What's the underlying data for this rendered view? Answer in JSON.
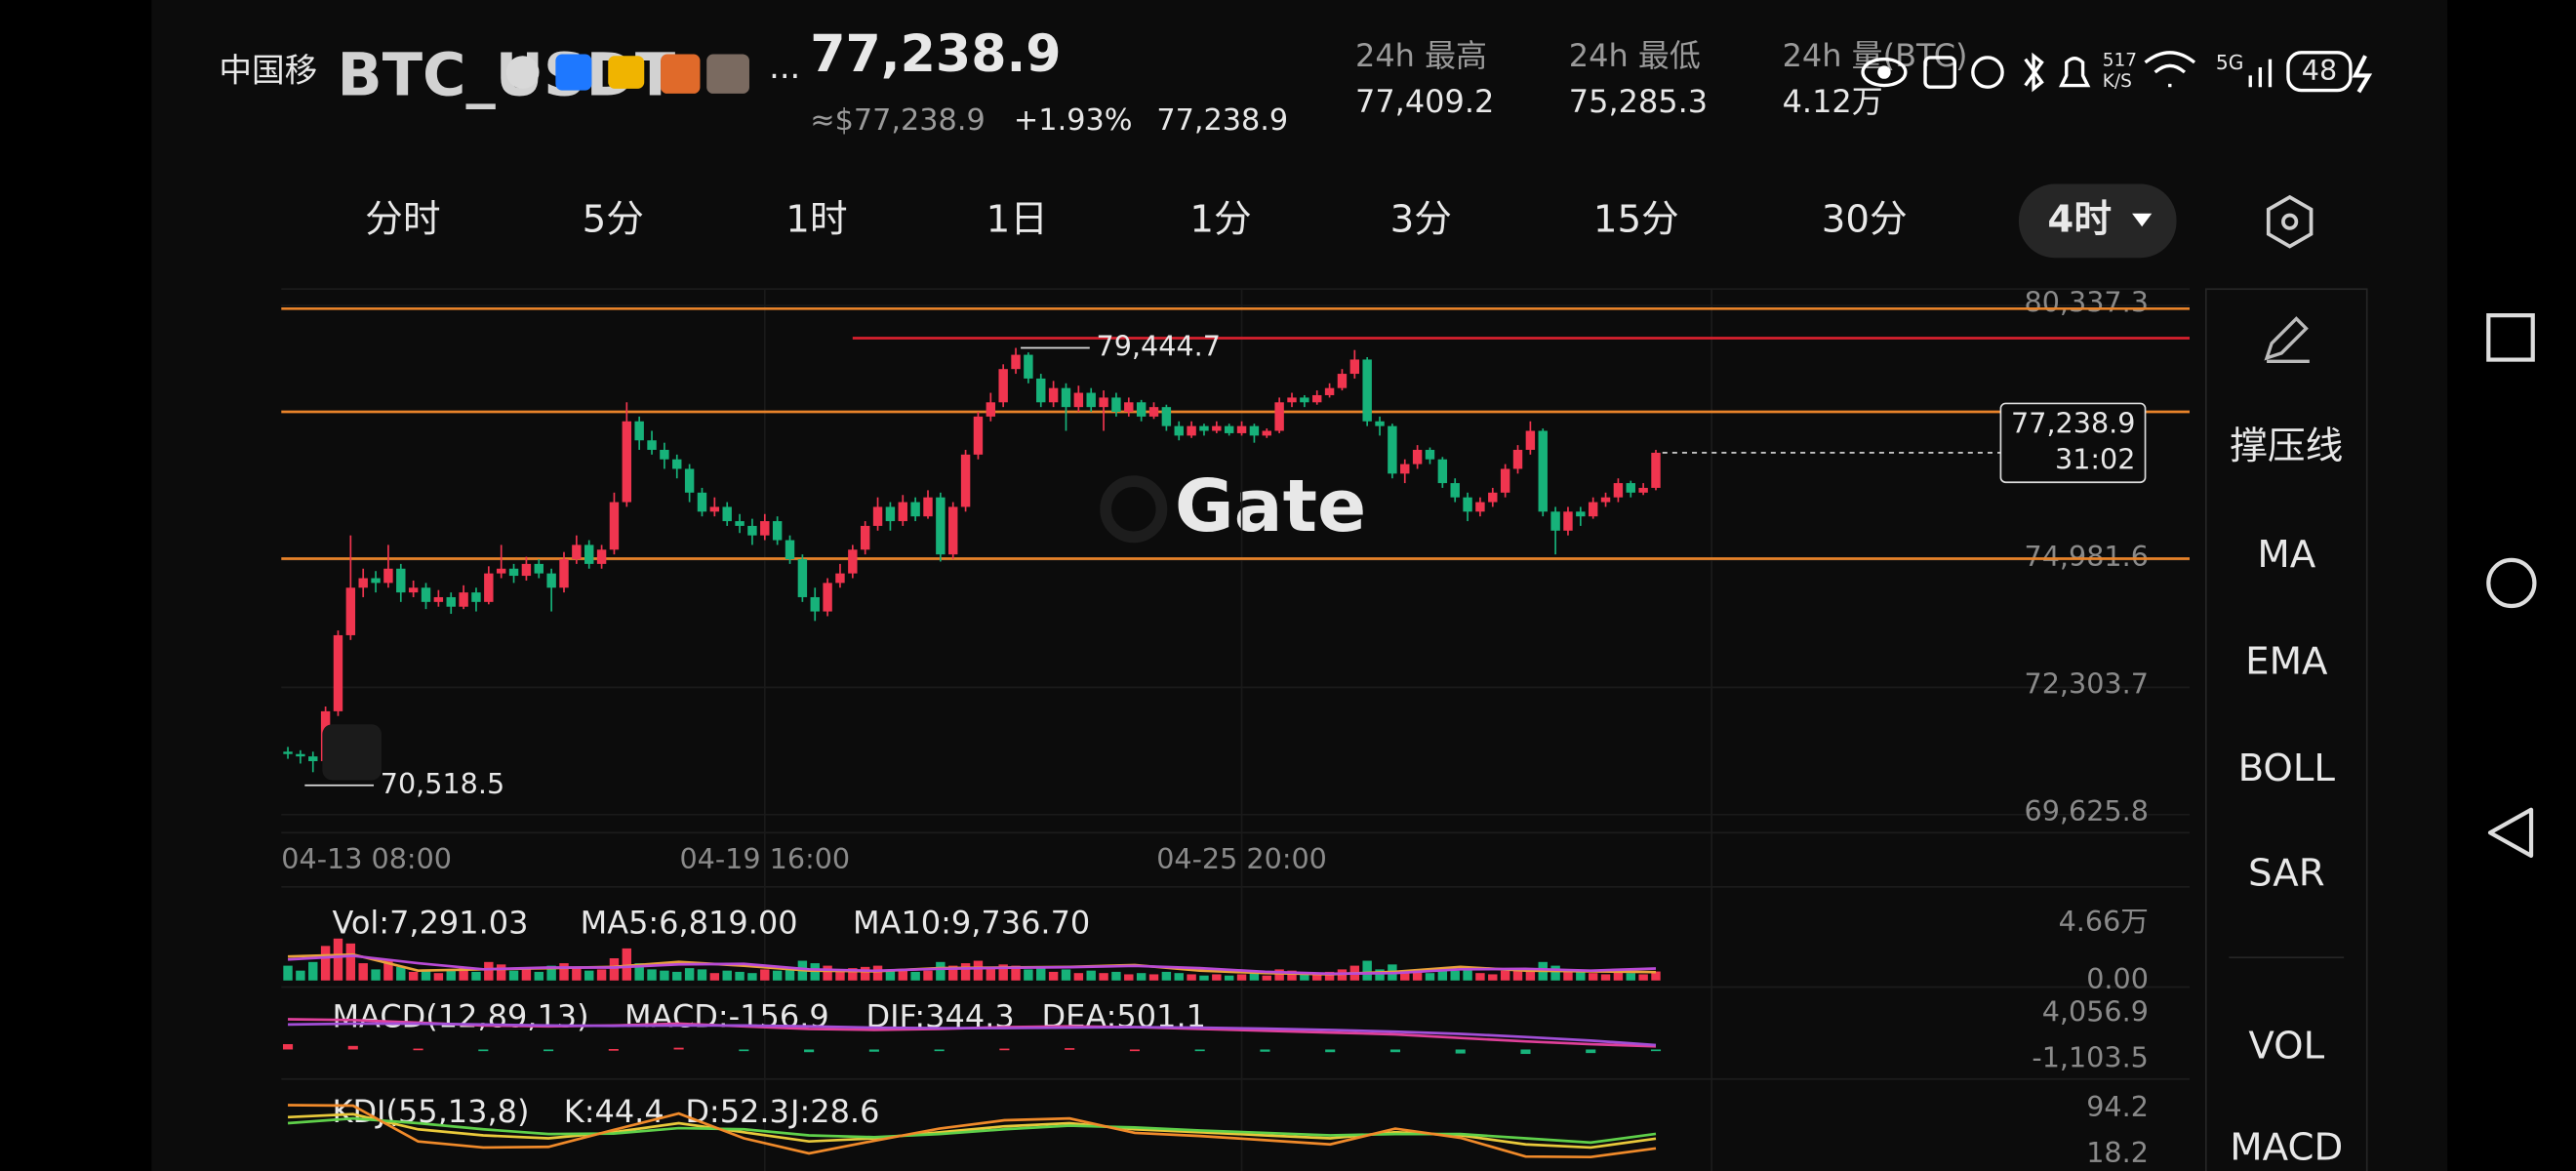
{
  "status_bar": {
    "carrier": "中国移",
    "speed_value": "517",
    "speed_unit": "K/S",
    "network": "5G",
    "battery": "48"
  },
  "header": {
    "symbol": "BTC_USDT",
    "more": "...",
    "price": "77,238.9",
    "approx": "≈$77,238.9",
    "change": "+1.93%",
    "mark_price": "77,238.9"
  },
  "stats": [
    {
      "label": "24h  最高",
      "value": "77,409.2"
    },
    {
      "label": "24h  最低",
      "value": "75,285.3"
    },
    {
      "label": "24h  量(BTC)",
      "value": "4.12万"
    }
  ],
  "tabs": {
    "items": [
      "分时",
      "5分",
      "1时",
      "1日",
      "1分",
      "3分",
      "15分",
      "30分",
      "4时"
    ],
    "active": 8
  },
  "toolbar": [
    "撑压线",
    "MA",
    "EMA",
    "BOLL",
    "SAR",
    "VOL",
    "MACD"
  ],
  "chart": {
    "type": "candlestick",
    "watermark": "Gate",
    "up_color": "#f0354f",
    "down_color": "#17b27a",
    "ylim": [
      69625.8,
      80337.3
    ],
    "yticks": [
      {
        "value": 80337.3,
        "label": "80,337.3"
      },
      {
        "value": 74981.6,
        "label": "74,981.6"
      },
      {
        "value": 72303.7,
        "label": "72,303.7"
      },
      {
        "value": 69625.8,
        "label": "69,625.8"
      }
    ],
    "xlabels": [
      {
        "index": 0,
        "label": "04-13 08:00"
      },
      {
        "index": 38,
        "label": "04-19 16:00"
      },
      {
        "index": 76,
        "label": "04-25 20:00"
      }
    ],
    "levels": [
      {
        "price": 80270,
        "color": "#e8832a"
      },
      {
        "price": 78100,
        "color": "#e8832a"
      },
      {
        "price": 75010,
        "color": "#e8832a"
      },
      {
        "price": 79650,
        "color": "#d8202e",
        "from_index": 45
      }
    ],
    "high": {
      "value": 79444.7,
      "label": "79,444.7"
    },
    "low": {
      "value": 70518.5,
      "label": "70,518.5"
    },
    "last": {
      "value": 77238.9,
      "label": "77,238.9",
      "countdown": "31:02"
    },
    "candles": [
      [
        70950,
        71050,
        70800,
        70900
      ],
      [
        70900,
        70980,
        70700,
        70850
      ],
      [
        70850,
        70950,
        70518.5,
        70750
      ],
      [
        70750,
        71900,
        70700,
        71800
      ],
      [
        71800,
        73500,
        71700,
        73400
      ],
      [
        73400,
        75500,
        73300,
        74400
      ],
      [
        74400,
        74800,
        74200,
        74600
      ],
      [
        74600,
        74750,
        74300,
        74500
      ],
      [
        74500,
        75300,
        74400,
        74800
      ],
      [
        74800,
        74900,
        74100,
        74300
      ],
      [
        74300,
        74550,
        74200,
        74400
      ],
      [
        74400,
        74500,
        73950,
        74100
      ],
      [
        74100,
        74350,
        74000,
        74200
      ],
      [
        74200,
        74300,
        73850,
        74000
      ],
      [
        74000,
        74450,
        73950,
        74300
      ],
      [
        74300,
        74400,
        73900,
        74100
      ],
      [
        74100,
        74850,
        74050,
        74700
      ],
      [
        74700,
        75300,
        74600,
        74800
      ],
      [
        74800,
        74900,
        74500,
        74650
      ],
      [
        74650,
        75050,
        74550,
        74900
      ],
      [
        74900,
        75000,
        74600,
        74700
      ],
      [
        74700,
        74800,
        73900,
        74400
      ],
      [
        74400,
        75150,
        74300,
        75000
      ],
      [
        75000,
        75500,
        74900,
        75300
      ],
      [
        75300,
        75400,
        74800,
        74900
      ],
      [
        74900,
        75300,
        74800,
        75200
      ],
      [
        75200,
        76400,
        75100,
        76200
      ],
      [
        76200,
        78300,
        76100,
        77900
      ],
      [
        77900,
        78000,
        77300,
        77500
      ],
      [
        77500,
        77700,
        77200,
        77300
      ],
      [
        77300,
        77450,
        76900,
        77100
      ],
      [
        77100,
        77200,
        76700,
        76900
      ],
      [
        76900,
        77000,
        76200,
        76400
      ],
      [
        76400,
        76500,
        75900,
        76000
      ],
      [
        76000,
        76300,
        75900,
        76100
      ],
      [
        76100,
        76200,
        75700,
        75800
      ],
      [
        75800,
        75950,
        75550,
        75700
      ],
      [
        75700,
        75850,
        75300,
        75500
      ],
      [
        75500,
        75950,
        75400,
        75800
      ],
      [
        75800,
        75900,
        75300,
        75400
      ],
      [
        75400,
        75500,
        74900,
        75000
      ],
      [
        75000,
        75100,
        74100,
        74200
      ],
      [
        74200,
        74400,
        73700,
        73900
      ],
      [
        73900,
        74600,
        73800,
        74500
      ],
      [
        74500,
        74900,
        74400,
        74700
      ],
      [
        74700,
        75300,
        74600,
        75200
      ],
      [
        75200,
        75800,
        75100,
        75700
      ],
      [
        75700,
        76300,
        75600,
        76100
      ],
      [
        76100,
        76200,
        75600,
        75800
      ],
      [
        75800,
        76350,
        75700,
        76200
      ],
      [
        76200,
        76300,
        75800,
        75900
      ],
      [
        75900,
        76450,
        75850,
        76300
      ],
      [
        76300,
        76400,
        74950,
        75100
      ],
      [
        75100,
        76200,
        75000,
        76100
      ],
      [
        76100,
        77300,
        76000,
        77200
      ],
      [
        77200,
        78100,
        77100,
        78000
      ],
      [
        78000,
        78500,
        77900,
        78300
      ],
      [
        78300,
        79100,
        78200,
        79000
      ],
      [
        79000,
        79444.7,
        78900,
        79300
      ],
      [
        79300,
        79350,
        78700,
        78800
      ],
      [
        78800,
        78900,
        78200,
        78300
      ],
      [
        78300,
        78750,
        78200,
        78600
      ],
      [
        78600,
        78700,
        77700,
        78200
      ],
      [
        78200,
        78650,
        78100,
        78500
      ],
      [
        78500,
        78600,
        78100,
        78200
      ],
      [
        78200,
        78550,
        77700,
        78400
      ],
      [
        78400,
        78500,
        78000,
        78100
      ],
      [
        78100,
        78400,
        78000,
        78300
      ],
      [
        78300,
        78350,
        77900,
        78000
      ],
      [
        78000,
        78300,
        77950,
        78200
      ],
      [
        78200,
        78250,
        77700,
        77800
      ],
      [
        77800,
        77900,
        77500,
        77600
      ],
      [
        77600,
        77900,
        77550,
        77800
      ],
      [
        77800,
        77850,
        77600,
        77700
      ],
      [
        77700,
        77900,
        77650,
        77800
      ],
      [
        77800,
        77850,
        77600,
        77650
      ],
      [
        77650,
        77900,
        77600,
        77800
      ],
      [
        77800,
        77850,
        77450,
        77600
      ],
      [
        77600,
        77750,
        77550,
        77700
      ],
      [
        77700,
        78400,
        77650,
        78300
      ],
      [
        78300,
        78500,
        78200,
        78400
      ],
      [
        78400,
        78450,
        78200,
        78300
      ],
      [
        78300,
        78550,
        78250,
        78450
      ],
      [
        78450,
        78700,
        78400,
        78600
      ],
      [
        78600,
        79000,
        78550,
        78900
      ],
      [
        78900,
        79400,
        78800,
        79200
      ],
      [
        79200,
        79250,
        77800,
        77900
      ],
      [
        77900,
        78000,
        77600,
        77800
      ],
      [
        77800,
        77850,
        76700,
        76800
      ],
      [
        76800,
        77100,
        76600,
        77000
      ],
      [
        77000,
        77400,
        76900,
        77300
      ],
      [
        77300,
        77350,
        77000,
        77100
      ],
      [
        77100,
        77150,
        76500,
        76600
      ],
      [
        76600,
        76700,
        76200,
        76300
      ],
      [
        76300,
        76400,
        75800,
        76000
      ],
      [
        76000,
        76300,
        75900,
        76200
      ],
      [
        76200,
        76500,
        76100,
        76400
      ],
      [
        76400,
        77000,
        76300,
        76900
      ],
      [
        76900,
        77400,
        76800,
        77300
      ],
      [
        77300,
        77900,
        77200,
        77700
      ],
      [
        77700,
        77750,
        75900,
        76000
      ],
      [
        76000,
        76100,
        75100,
        75600
      ],
      [
        75600,
        76100,
        75500,
        76000
      ],
      [
        76000,
        76100,
        75700,
        75900
      ],
      [
        75900,
        76300,
        75850,
        76200
      ],
      [
        76200,
        76400,
        76100,
        76300
      ],
      [
        76300,
        76700,
        76200,
        76600
      ],
      [
        76600,
        76650,
        76300,
        76400
      ],
      [
        76400,
        76600,
        76350,
        76500
      ],
      [
        76500,
        77300,
        76450,
        77238.9
      ]
    ],
    "volume": {
      "values": [
        12000,
        8000,
        15000,
        28000,
        34000,
        30000,
        14000,
        9000,
        16000,
        11000,
        7000,
        9000,
        6000,
        8000,
        10000,
        7000,
        15000,
        13000,
        8000,
        9000,
        7000,
        12000,
        14000,
        11000,
        8000,
        9000,
        18000,
        26000,
        14000,
        9000,
        8000,
        7000,
        10000,
        9000,
        6000,
        8000,
        7000,
        6000,
        9000,
        8000,
        10000,
        16000,
        14000,
        12000,
        9000,
        10000,
        11000,
        12000,
        8000,
        9000,
        7000,
        8000,
        15000,
        12000,
        14000,
        16000,
        11000,
        13000,
        12000,
        9000,
        10000,
        7000,
        9000,
        6000,
        8000,
        6000,
        7000,
        5000,
        6000,
        5000,
        7000,
        6000,
        5000,
        4000,
        5000,
        4000,
        5000,
        6000,
        4000,
        9000,
        8000,
        6000,
        5000,
        7000,
        9000,
        12000,
        16000,
        9000,
        13000,
        8000,
        7000,
        6000,
        9000,
        8000,
        9000,
        6000,
        5000,
        8000,
        9000,
        10000,
        15000,
        12000,
        8000,
        7000,
        6000,
        5000,
        7000,
        6000,
        5000,
        7291.03
      ],
      "ma5": [
        19500,
        21000,
        8000,
        9000,
        10000,
        11000,
        15000,
        12000,
        8000,
        7500,
        10000,
        10500,
        11000,
        12500,
        8000,
        6000,
        5000,
        7000,
        11000,
        8000,
        7500,
        6819
      ],
      "ma10": [
        17000,
        20000,
        14000,
        9000,
        10500,
        10500,
        13000,
        13500,
        9000,
        7800,
        9500,
        10300,
        10800,
        11800,
        10000,
        7000,
        5500,
        6000,
        9000,
        9500,
        8000,
        9736.7
      ],
      "ma5_color": "#e9a23b",
      "ma10_color": "#b94bd6",
      "ylim": [
        0,
        46600
      ],
      "yticks": [
        {
          "value": 46600,
          "label": "4.66万"
        },
        {
          "value": 0,
          "label": "0.00"
        }
      ],
      "legend": [
        {
          "text": "Vol:7,291.03",
          "color": "#e9a23b"
        },
        {
          "text": "MA5:6,819.00",
          "color": "#e9a23b"
        },
        {
          "text": "MA10:9,736.70",
          "color": "#b94bd6"
        }
      ]
    },
    "macd": {
      "dif": [
        3400,
        3300,
        3000,
        2700,
        2600,
        2700,
        2900,
        2600,
        2300,
        2200,
        2300,
        2500,
        2600,
        2500,
        2300,
        2100,
        1900,
        1700,
        1300,
        900,
        600,
        344.3
      ],
      "dea": [
        2800,
        2900,
        2900,
        2800,
        2700,
        2650,
        2700,
        2700,
        2600,
        2450,
        2400,
        2400,
        2450,
        2500,
        2450,
        2350,
        2200,
        2000,
        1750,
        1400,
        1000,
        501.1
      ],
      "hist": [
        600,
        400,
        100,
        -100,
        -100,
        50,
        200,
        -100,
        -300,
        -250,
        -100,
        100,
        150,
        0,
        -150,
        -250,
        -300,
        -300,
        -450,
        -500,
        -400,
        -156.9
      ],
      "dif_color": "#e0409a",
      "dea_color": "#a24fd8",
      "ylim": [
        -1103.5,
        4056.9
      ],
      "yticks": [
        {
          "value": 4056.9,
          "label": "4,056.9"
        },
        {
          "value": -1103.5,
          "label": "-1,103.5"
        }
      ],
      "legend": [
        {
          "text": "MACD(12,89,13)",
          "color": "#9a9a9a"
        },
        {
          "text": "MACD:-156.9",
          "color": "#e9a23b"
        },
        {
          "text": "DIF:344.3",
          "color": "#e0409a"
        },
        {
          "text": "DEA:501.1",
          "color": "#a24fd8"
        }
      ]
    },
    "kdj": {
      "k": [
        80,
        85,
        60,
        50,
        45,
        55,
        70,
        55,
        40,
        45,
        55,
        65,
        70,
        60,
        55,
        50,
        45,
        55,
        50,
        35,
        30,
        44.4
      ],
      "d": [
        70,
        78,
        70,
        60,
        52,
        53,
        62,
        60,
        50,
        47,
        52,
        60,
        66,
        63,
        58,
        54,
        50,
        52,
        52,
        45,
        38,
        52.3
      ],
      "j": [
        100,
        99,
        40,
        30,
        31,
        59,
        86,
        45,
        20,
        41,
        61,
        75,
        78,
        54,
        49,
        42,
        35,
        61,
        46,
        15,
        14,
        28.6
      ],
      "k_color": "#e9c93b",
      "d_color": "#5fd04a",
      "j_color": "#f08a2a",
      "ylim": [
        18.2,
        94.2
      ],
      "yticks": [
        {
          "value": 94.2,
          "label": "94.2"
        },
        {
          "value": 18.2,
          "label": "18.2"
        }
      ],
      "legend": [
        {
          "text": "KDJ(55,13,8)",
          "color": "#9a9a9a"
        },
        {
          "text": "K:44.4",
          "color": "#e9c93b"
        },
        {
          "text": "D:52.3",
          "color": "#5fd04a"
        },
        {
          "text": "J:28.6",
          "color": "#f08a2a"
        }
      ]
    }
  }
}
